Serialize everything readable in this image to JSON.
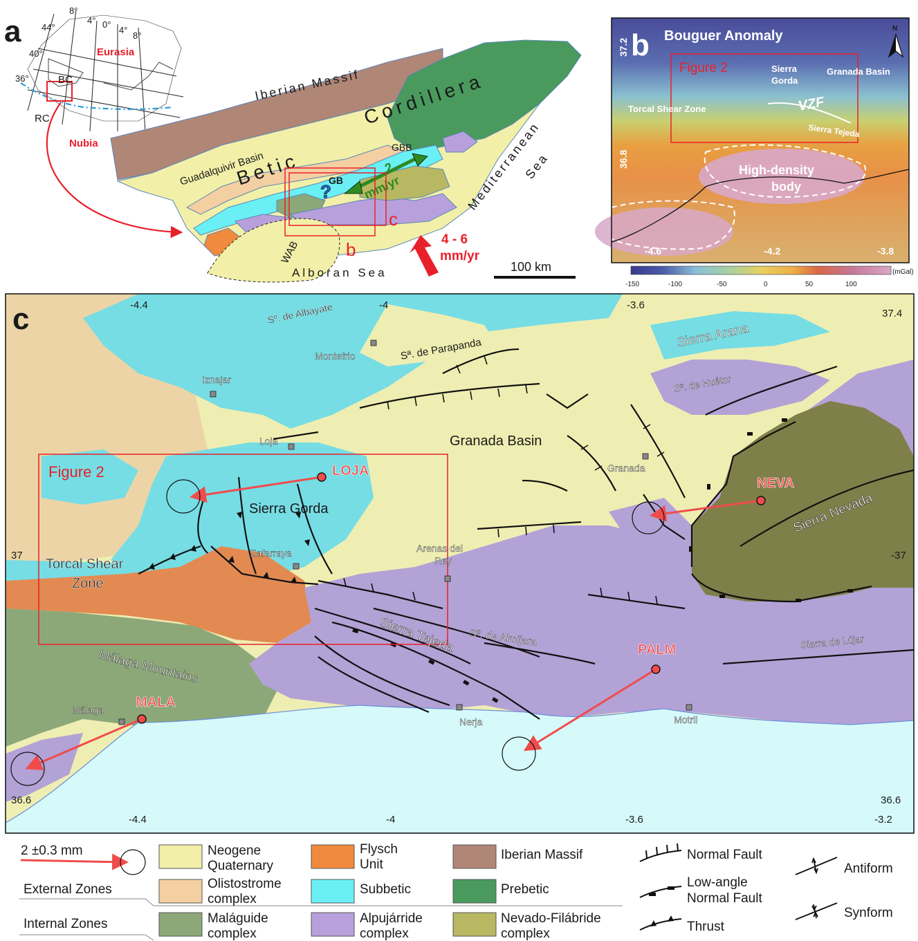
{
  "panel_a": {
    "letter": "a",
    "inset": {
      "lon_labels": [
        "8°",
        "4°",
        "0°",
        "4°",
        "8°"
      ],
      "lat_labels": [
        "44°",
        "40°",
        "36°"
      ],
      "bc": "BC",
      "rc": "RC",
      "eurasia": "Eurasia",
      "nubia": "Nubia"
    },
    "labels": {
      "iberian_massif": "Iberian Massif",
      "cordillera": "Cordillera",
      "betic": "Betic",
      "guadalquivir": "Guadalquivir Basin",
      "mediterranean": "Mediterranean",
      "sea": "Sea",
      "gbb": "GBB",
      "gb": "GB",
      "question": "?",
      "rate_green_num": "2",
      "rate_green_unit": "mm/yr",
      "wab": "WAB",
      "alboran": "Alboran Sea",
      "box_b": "b",
      "box_c": "c",
      "rate_red_num": "4 - 6",
      "rate_red_unit": "mm/yr",
      "scale": "100 km"
    },
    "colors": {
      "neogene": "#f2f0a8",
      "olistostrome": "#f4cfa2",
      "subbetic": "#6af0f4",
      "prebetic": "#4a9a5e",
      "iberian": "#b08676",
      "flysch": "#f08a3c",
      "alpujarride": "#b8a0dc",
      "nevado": "#b8b862",
      "malaguide": "#8aa878",
      "frame_red": "#e8202a",
      "arrow_green": "#2e8a22"
    }
  },
  "panel_b": {
    "letter": "b",
    "title": "Bouguer Anomaly",
    "north": "N",
    "figure2": "Figure 2",
    "sierra_gorda": [
      "Sierra",
      "Gorda"
    ],
    "granada_basin": "Granada Basin",
    "vzf": "VZF",
    "torcal": "Torcal Shear Zone",
    "sierra_tejeda": "Sierra Tejeda",
    "high_density": [
      "High-density",
      "body"
    ],
    "lat_labels": [
      "37.2",
      "36.8"
    ],
    "lon_labels": [
      "-4.6",
      "-4.2",
      "-3.8"
    ],
    "colorbar": {
      "ticks": [
        "-150",
        "-100",
        "-50",
        "0",
        "50",
        "100"
      ],
      "unit": "(mGal)",
      "colors": [
        "#3a3a8c",
        "#4a5aa8",
        "#6a8cc8",
        "#8ac0d8",
        "#a8d0a0",
        "#c8d878",
        "#e8d060",
        "#f0b048",
        "#e89038",
        "#d86848",
        "#c87898",
        "#d8a8c8"
      ]
    }
  },
  "panel_c": {
    "letter": "c",
    "lon_top": [
      "-4.4",
      "-4",
      "-3.6"
    ],
    "lon_bottom": [
      "-4.4",
      "-4",
      "-3.6",
      "-3.2"
    ],
    "lat_left": [
      "37",
      "36.6"
    ],
    "lat_right": [
      "37.4",
      "-37",
      "36.6"
    ],
    "places": {
      "albayate": "Sº. de Albayate",
      "montefrio": "Montefrio",
      "parapanda": "Sª. de Parapanda",
      "iznajar": "Iznajar",
      "sierra_arana": "Sierra Arana",
      "huetor": "Sº. de Huétor",
      "loja": "Loja",
      "granada_basin": "Granada Basin",
      "granada": "Granada",
      "sierra_gorda": "Sierra Gorda",
      "zafarraya": "Zafarraya",
      "arenas1": "Arenas del",
      "arenas2": "Rey",
      "torcal1": "Torcal Shear",
      "torcal2": "Zone",
      "sierra_nevada": "Sierra Nevada",
      "sierra_tejeda": "Sierra Tejeda",
      "almijara": "Sº. de Almijara",
      "lujar": "Sierra de Lújar",
      "malaga_mountains": "Málaga Mountains",
      "malaga": "Málaga",
      "nerja": "Nerja",
      "motril": "Motril"
    },
    "figure2": "Figure 2",
    "stations": [
      "LOJA",
      "NEVA",
      "PALM",
      "MALA"
    ],
    "sea_color": "#d6fafa"
  },
  "legend": {
    "scale_arrow": "2 ±0.3 mm",
    "external_zones": "External Zones",
    "internal_zones": "Internal Zones",
    "units": [
      [
        "Neogene",
        "Quaternary"
      ],
      [
        "Olistostrome",
        "complex"
      ],
      [
        "Maláguide",
        "complex"
      ],
      [
        "Flysch",
        "Unit"
      ],
      [
        "Subbetic"
      ],
      [
        "Alpujárride",
        "complex"
      ],
      [
        "Iberian Massif"
      ],
      [
        "Prebetic"
      ],
      [
        "Nevado-Filábride",
        "complex"
      ]
    ],
    "structures": {
      "normal": "Normal Fault",
      "low_angle": [
        "Low-angle",
        "Normal Fault"
      ],
      "thrust": "Thrust",
      "antiform": "Antiform",
      "synform": "Synform"
    }
  }
}
